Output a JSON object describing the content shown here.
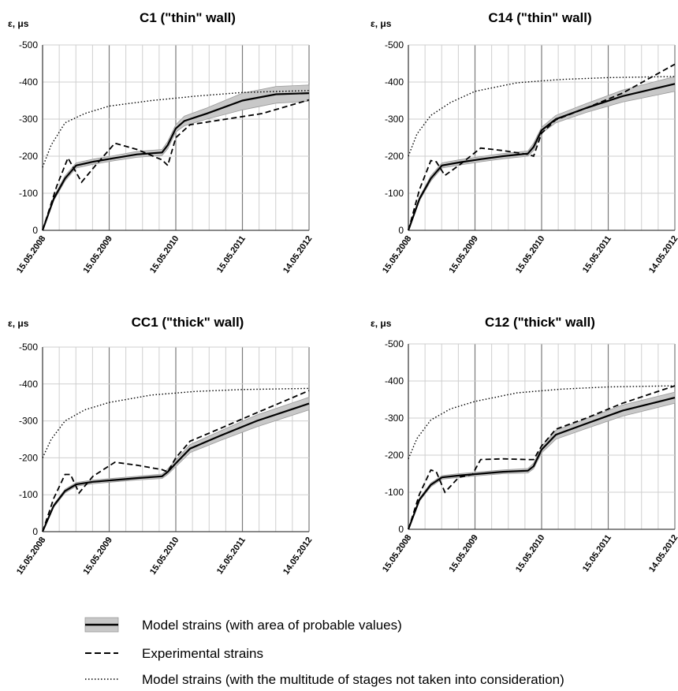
{
  "chart_data": [
    {
      "type": "line",
      "title": "C1 (\"thin\" wall)",
      "ylabel": "ε, μs",
      "ylim": [
        0,
        -500
      ],
      "yticks": [
        -500,
        -400,
        -300,
        -200,
        -100,
        0
      ],
      "x_tick_labels": [
        "15.05.2008",
        "15.05.2009",
        "15.05.2010",
        "15.05.2011",
        "14.05.2012"
      ],
      "x_range": [
        "2008-05-15",
        "2012-05-14"
      ],
      "grid": "on",
      "series": [
        {
          "name": "Model strains (with area of probable values)",
          "style": "solid-band",
          "x": [
            "2008-05-15",
            "2008-07-15",
            "2008-09-15",
            "2008-11-15",
            "2009-02-15",
            "2009-06-15",
            "2009-10-15",
            "2010-03-01",
            "2010-04-01",
            "2010-05-15",
            "2010-07-01",
            "2010-11-01",
            "2011-05-15",
            "2011-11-15",
            "2012-05-14"
          ],
          "values": [
            0,
            -85,
            -140,
            -175,
            -185,
            -195,
            -205,
            -210,
            -230,
            -275,
            -295,
            -315,
            -350,
            -367,
            -370
          ],
          "band_lower": [
            0,
            -80,
            -133,
            -168,
            -178,
            -188,
            -197,
            -202,
            -220,
            -265,
            -282,
            -300,
            -325,
            -343,
            -348
          ],
          "band_upper": [
            0,
            -90,
            -147,
            -182,
            -192,
            -202,
            -213,
            -218,
            -240,
            -285,
            -308,
            -330,
            -370,
            -388,
            -392
          ]
        },
        {
          "name": "Experimental strains",
          "style": "dashed",
          "x": [
            "2008-05-15",
            "2008-08-01",
            "2008-10-01",
            "2008-12-15",
            "2009-03-01",
            "2009-06-15",
            "2009-10-15",
            "2010-03-01",
            "2010-04-01",
            "2010-05-15",
            "2010-08-01",
            "2011-02-15",
            "2011-09-01",
            "2012-05-14"
          ],
          "values": [
            0,
            -120,
            -195,
            -130,
            -175,
            -235,
            -218,
            -190,
            -175,
            -250,
            -285,
            -300,
            -315,
            -352
          ]
        },
        {
          "name": "Model strains (with the multitude of stages not taken into consideration)",
          "style": "dotted",
          "x": [
            "2008-05-15",
            "2008-07-01",
            "2008-09-15",
            "2009-01-01",
            "2009-05-15",
            "2010-01-01",
            "2010-09-01",
            "2011-05-15",
            "2012-05-14"
          ],
          "values": [
            -170,
            -230,
            -290,
            -315,
            -335,
            -350,
            -362,
            -372,
            -377
          ]
        }
      ]
    },
    {
      "type": "line",
      "title": "C14 (\"thin\" wall)",
      "ylabel": "ε, μs",
      "ylim": [
        0,
        -500
      ],
      "yticks": [
        -500,
        -400,
        -300,
        -200,
        -100,
        0
      ],
      "x_tick_labels": [
        "15.05.2008",
        "15.05.2009",
        "15.05.2010",
        "15.05.2011",
        "14.05.2012"
      ],
      "x_range": [
        "2008-05-15",
        "2012-05-14"
      ],
      "grid": "on",
      "series": [
        {
          "name": "Model strains (with area of probable values)",
          "style": "solid-band",
          "x": [
            "2008-05-15",
            "2008-07-15",
            "2008-09-15",
            "2008-11-15",
            "2009-02-15",
            "2009-06-15",
            "2009-10-15",
            "2010-03-01",
            "2010-04-01",
            "2010-05-15",
            "2010-08-01",
            "2011-01-15",
            "2011-08-01",
            "2012-05-14"
          ],
          "values": [
            0,
            -85,
            -140,
            -175,
            -183,
            -192,
            -200,
            -207,
            -225,
            -270,
            -300,
            -330,
            -362,
            -395
          ],
          "band_lower": [
            0,
            -80,
            -133,
            -168,
            -176,
            -185,
            -193,
            -200,
            -215,
            -262,
            -290,
            -318,
            -346,
            -375
          ],
          "band_upper": [
            0,
            -90,
            -147,
            -182,
            -190,
            -199,
            -207,
            -214,
            -235,
            -278,
            -310,
            -342,
            -378,
            -415
          ]
        },
        {
          "name": "Experimental strains",
          "style": "dashed",
          "x": [
            "2008-05-15",
            "2008-07-15",
            "2008-09-15",
            "2008-10-15",
            "2008-12-01",
            "2009-02-15",
            "2009-06-15",
            "2009-10-15",
            "2010-03-01",
            "2010-04-01",
            "2010-05-15",
            "2010-08-01",
            "2011-01-15",
            "2011-08-01",
            "2012-05-14"
          ],
          "values": [
            0,
            -110,
            -188,
            -185,
            -148,
            -175,
            -222,
            -215,
            -205,
            -200,
            -262,
            -298,
            -330,
            -370,
            -448
          ]
        },
        {
          "name": "Model strains (with the multitude of stages not taken into consideration)",
          "style": "dotted",
          "x": [
            "2008-05-15",
            "2008-07-01",
            "2008-09-15",
            "2009-01-01",
            "2009-05-15",
            "2010-01-01",
            "2010-09-01",
            "2011-05-15",
            "2012-05-14"
          ],
          "values": [
            -200,
            -260,
            -310,
            -345,
            -375,
            -398,
            -407,
            -412,
            -415
          ]
        }
      ]
    },
    {
      "type": "line",
      "title": "CC1 (\"thick\" wall)",
      "ylabel": "ε, μs",
      "ylim": [
        0,
        -500
      ],
      "yticks": [
        -500,
        -400,
        -300,
        -200,
        -100,
        0
      ],
      "x_tick_labels": [
        "15.05.2008",
        "15.05.2009",
        "15.05.2010",
        "15.05.2011",
        "14.05.2012"
      ],
      "x_range": [
        "2008-05-15",
        "2012-05-14"
      ],
      "grid": "on",
      "series": [
        {
          "name": "Model strains (with area of probable values)",
          "style": "solid-band",
          "x": [
            "2008-05-15",
            "2008-07-15",
            "2008-09-15",
            "2008-11-15",
            "2009-02-15",
            "2009-06-15",
            "2009-10-15",
            "2010-03-01",
            "2010-04-01",
            "2010-05-15",
            "2010-08-01",
            "2011-01-15",
            "2011-08-01",
            "2012-05-14"
          ],
          "values": [
            0,
            -70,
            -110,
            -128,
            -135,
            -140,
            -145,
            -150,
            -162,
            -185,
            -225,
            -260,
            -300,
            -347
          ],
          "band_lower": [
            0,
            -66,
            -105,
            -123,
            -130,
            -135,
            -140,
            -144,
            -155,
            -176,
            -214,
            -247,
            -284,
            -330
          ],
          "band_upper": [
            0,
            -74,
            -115,
            -133,
            -140,
            -145,
            -150,
            -156,
            -170,
            -194,
            -236,
            -273,
            -316,
            -364
          ]
        },
        {
          "name": "Experimental strains",
          "style": "dashed",
          "x": [
            "2008-05-15",
            "2008-07-15",
            "2008-09-15",
            "2008-10-15",
            "2008-12-01",
            "2009-02-15",
            "2009-06-15",
            "2009-10-15",
            "2010-03-01",
            "2010-04-01",
            "2010-05-15",
            "2010-08-01",
            "2011-01-15",
            "2011-08-01",
            "2012-05-14"
          ],
          "values": [
            0,
            -90,
            -155,
            -155,
            -105,
            -150,
            -188,
            -180,
            -168,
            -162,
            -200,
            -245,
            -280,
            -322,
            -382
          ]
        },
        {
          "name": "Model strains (with the multitude of stages not taken into consideration)",
          "style": "dotted",
          "x": [
            "2008-05-15",
            "2008-07-01",
            "2008-09-15",
            "2009-01-01",
            "2009-05-15",
            "2010-01-01",
            "2010-09-01",
            "2011-05-15",
            "2012-05-14"
          ],
          "values": [
            -200,
            -250,
            -300,
            -330,
            -350,
            -370,
            -380,
            -385,
            -388
          ]
        }
      ]
    },
    {
      "type": "line",
      "title": "C12 (\"thick\" wall)",
      "ylabel": "ε, μs",
      "ylim": [
        0,
        -500
      ],
      "yticks": [
        -500,
        -400,
        -300,
        -200,
        -100,
        0
      ],
      "x_tick_labels": [
        "15.05.2008",
        "15.05.2009",
        "15.05.2010",
        "15.05.2011",
        "14.05.2012"
      ],
      "x_range": [
        "2008-05-15",
        "2012-05-14"
      ],
      "grid": "on",
      "series": [
        {
          "name": "Model strains (with area of probable values)",
          "style": "solid-band",
          "x": [
            "2008-05-15",
            "2008-07-15",
            "2008-09-15",
            "2008-11-15",
            "2009-02-15",
            "2009-06-15",
            "2009-10-15",
            "2010-03-01",
            "2010-04-01",
            "2010-05-15",
            "2010-08-01",
            "2011-01-15",
            "2011-08-01",
            "2012-05-14"
          ],
          "values": [
            0,
            -80,
            -120,
            -140,
            -145,
            -150,
            -155,
            -158,
            -170,
            -215,
            -255,
            -285,
            -320,
            -355
          ],
          "band_lower": [
            0,
            -76,
            -115,
            -135,
            -140,
            -145,
            -150,
            -152,
            -163,
            -206,
            -243,
            -272,
            -305,
            -340
          ],
          "band_upper": [
            0,
            -84,
            -125,
            -145,
            -150,
            -155,
            -160,
            -164,
            -178,
            -224,
            -267,
            -298,
            -335,
            -370
          ]
        },
        {
          "name": "Experimental strains",
          "style": "dashed",
          "x": [
            "2008-05-15",
            "2008-07-15",
            "2008-09-15",
            "2008-10-15",
            "2008-12-01",
            "2009-02-15",
            "2009-05-01",
            "2009-06-15",
            "2009-10-15",
            "2010-03-01",
            "2010-04-01",
            "2010-05-15",
            "2010-08-01",
            "2011-01-15",
            "2011-08-01",
            "2012-05-14"
          ],
          "values": [
            0,
            -95,
            -160,
            -155,
            -100,
            -140,
            -148,
            -188,
            -190,
            -188,
            -188,
            -225,
            -270,
            -300,
            -340,
            -387
          ]
        },
        {
          "name": "Model strains (with the multitude of stages not taken into consideration)",
          "style": "dotted",
          "x": [
            "2008-05-15",
            "2008-07-01",
            "2008-09-15",
            "2009-01-01",
            "2009-05-15",
            "2010-01-01",
            "2010-09-01",
            "2011-05-15",
            "2012-05-14"
          ],
          "values": [
            -190,
            -245,
            -295,
            -325,
            -345,
            -368,
            -378,
            -384,
            -387
          ]
        }
      ]
    }
  ],
  "legend": {
    "items": [
      {
        "label": "Model strains (with area of probable values)",
        "style": "solid-band"
      },
      {
        "label": "Experimental strains",
        "style": "dashed"
      },
      {
        "label": "Model strains (with the multitude of stages not taken into consideration)",
        "style": "dotted"
      }
    ]
  }
}
